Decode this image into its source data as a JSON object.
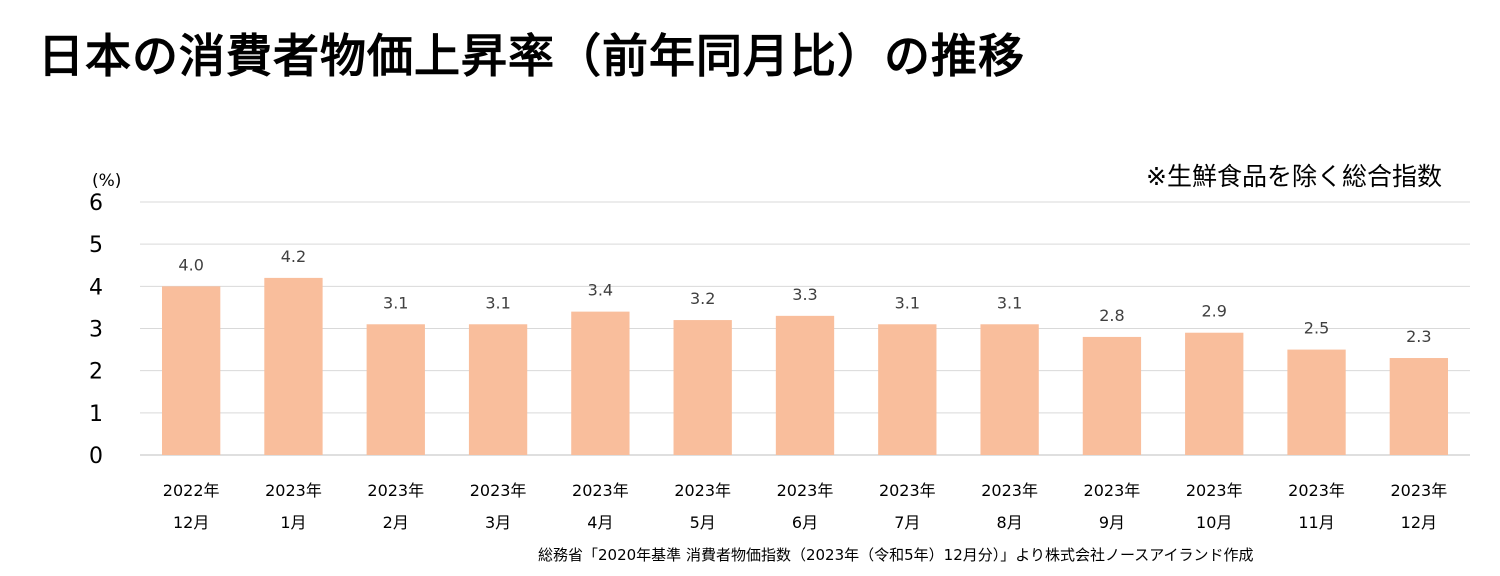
{
  "title": "日本の消費者物価上昇率（前年同月比）の推移",
  "chart_data": {
    "type": "bar",
    "categories": [
      [
        "2022年",
        "12月"
      ],
      [
        "2023年",
        "1月"
      ],
      [
        "2023年",
        "2月"
      ],
      [
        "2023年",
        "3月"
      ],
      [
        "2023年",
        "4月"
      ],
      [
        "2023年",
        "5月"
      ],
      [
        "2023年",
        "6月"
      ],
      [
        "2023年",
        "7月"
      ],
      [
        "2023年",
        "8月"
      ],
      [
        "2023年",
        "9月"
      ],
      [
        "2023年",
        "10月"
      ],
      [
        "2023年",
        "11月"
      ],
      [
        "2023年",
        "12月"
      ]
    ],
    "values": [
      4.0,
      4.2,
      3.1,
      3.1,
      3.4,
      3.2,
      3.3,
      3.1,
      3.1,
      2.8,
      2.9,
      2.5,
      2.3
    ],
    "ylim": [
      0,
      6
    ],
    "yticks": [
      0,
      1,
      2,
      3,
      4,
      5,
      6
    ],
    "yunit": "(%)",
    "note": "※生鮮食品を除く総合指数",
    "bar_color": "#F9BE9C",
    "grid": true
  },
  "source": "総務省「2020年基準 消費者物価指数（2023年（令和5年）12月分）」より株式会社ノースアイランド作成"
}
